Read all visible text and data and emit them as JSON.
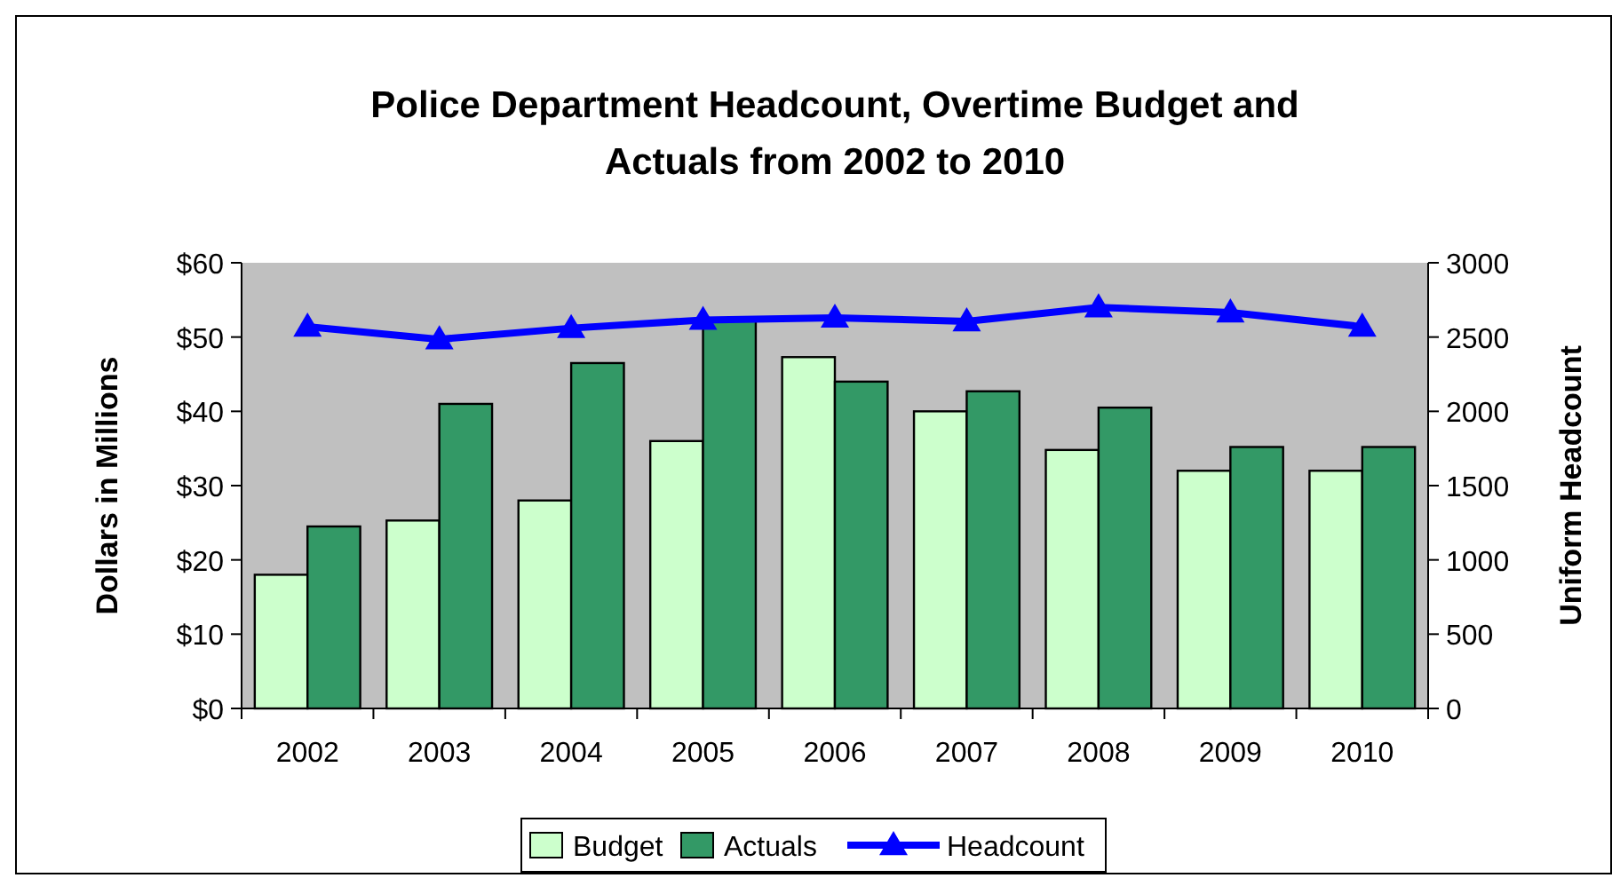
{
  "chart_data": {
    "type": "bar",
    "title": "Police Department Headcount, Overtime Budget and Actuals from 2002 to 2010",
    "ylabel": "Dollars in Millions",
    "y2label": "Uniform Headcount",
    "categories": [
      "2002",
      "2003",
      "2004",
      "2005",
      "2006",
      "2007",
      "2008",
      "2009",
      "2010"
    ],
    "series": [
      {
        "name": "Budget",
        "color": "#ccffcc",
        "values": [
          18,
          25.3,
          28,
          36,
          47.3,
          40,
          34.8,
          32,
          32
        ]
      },
      {
        "name": "Actuals",
        "color": "#339966",
        "values": [
          24.5,
          41,
          46.5,
          52.3,
          44,
          42.7,
          40.5,
          35.2,
          35.2
        ]
      },
      {
        "name": "Headcount",
        "type": "line",
        "axis": "y2",
        "color": "#0000ff",
        "marker": "triangle",
        "values": [
          2570,
          2485,
          2560,
          2615,
          2630,
          2605,
          2700,
          2665,
          2570
        ]
      }
    ],
    "ylim": [
      0,
      60
    ],
    "yticks": [
      {
        "value": 0,
        "label": "$0"
      },
      {
        "value": 10,
        "label": "$10"
      },
      {
        "value": 20,
        "label": "$20"
      },
      {
        "value": 30,
        "label": "$30"
      },
      {
        "value": 40,
        "label": "$40"
      },
      {
        "value": 50,
        "label": "$50"
      },
      {
        "value": 60,
        "label": "$60"
      }
    ],
    "y2lim": [
      0,
      3000
    ],
    "y2ticks": [
      0,
      500,
      1000,
      1500,
      2000,
      2500,
      3000
    ],
    "grid": false,
    "legend": "bottom"
  }
}
